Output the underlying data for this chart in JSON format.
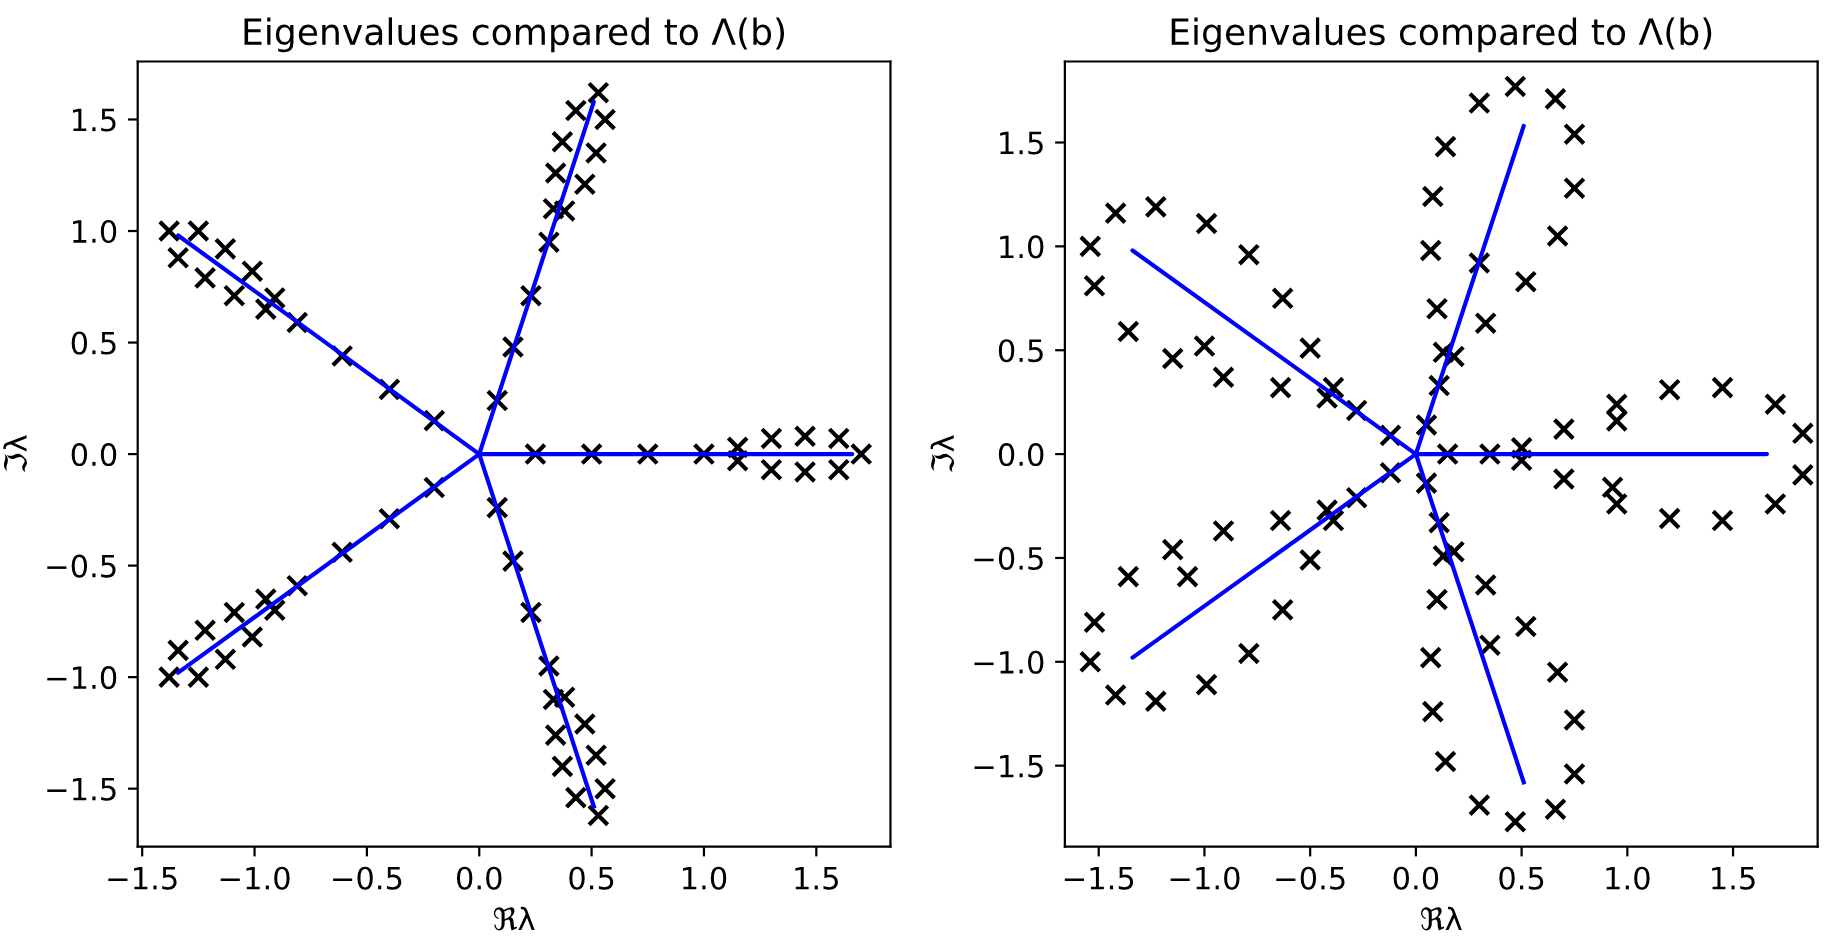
{
  "chart_data": [
    {
      "type": "scatter",
      "title": "Eigenvalues compared to Λ(b)",
      "xlabel": "ℜλ",
      "ylabel": "ℑλ",
      "grid": false,
      "xlim": [
        -1.52,
        1.83
      ],
      "ylim": [
        -1.76,
        1.76
      ],
      "xticks": [
        {
          "value": -1.5,
          "label": "−1.5"
        },
        {
          "value": -1.0,
          "label": "−1.0"
        },
        {
          "value": -0.5,
          "label": "−0.5"
        },
        {
          "value": 0.0,
          "label": "0.0"
        },
        {
          "value": 0.5,
          "label": "0.5"
        },
        {
          "value": 1.0,
          "label": "1.0"
        },
        {
          "value": 1.5,
          "label": "1.5"
        }
      ],
      "yticks": [
        {
          "value": -1.5,
          "label": "−1.5"
        },
        {
          "value": -1.0,
          "label": "−1.0"
        },
        {
          "value": -0.5,
          "label": "−0.5"
        },
        {
          "value": 0.0,
          "label": "0.0"
        },
        {
          "value": 0.5,
          "label": "0.5"
        },
        {
          "value": 1.0,
          "label": "1.0"
        },
        {
          "value": 1.5,
          "label": "1.5"
        }
      ],
      "series": [
        {
          "marker": "cross",
          "color": "#000000",
          "x": [
            0.25,
            0.5,
            0.75,
            1.0,
            1.15,
            1.15,
            1.3,
            1.3,
            1.45,
            1.45,
            1.6,
            1.6,
            1.7,
            0.08,
            0.15,
            0.23,
            0.31,
            0.33,
            0.38,
            0.34,
            0.47,
            0.37,
            0.52,
            0.43,
            0.56,
            0.53,
            -0.2,
            -0.4,
            -0.61,
            -0.81,
            -0.95,
            -0.91,
            -1.09,
            -1.01,
            -1.22,
            -1.13,
            -1.34,
            -1.25,
            -1.38,
            -0.2,
            -0.4,
            -0.61,
            -0.81,
            -0.95,
            -0.91,
            -1.09,
            -1.01,
            -1.22,
            -1.13,
            -1.34,
            -1.25,
            -1.38,
            0.08,
            0.15,
            0.23,
            0.31,
            0.33,
            0.38,
            0.34,
            0.47,
            0.37,
            0.52,
            0.43,
            0.56,
            0.53
          ],
          "values": [
            0,
            0,
            0,
            0,
            0.03,
            -0.03,
            0.07,
            -0.07,
            0.08,
            -0.08,
            0.07,
            -0.07,
            0,
            0.24,
            0.48,
            0.71,
            0.95,
            1.1,
            1.09,
            1.26,
            1.21,
            1.4,
            1.35,
            1.54,
            1.5,
            1.62,
            0.15,
            0.29,
            0.44,
            0.59,
            0.65,
            0.7,
            0.71,
            0.82,
            0.79,
            0.92,
            0.88,
            1.0,
            1.0,
            -0.15,
            -0.29,
            -0.44,
            -0.59,
            -0.65,
            -0.7,
            -0.71,
            -0.82,
            -0.79,
            -0.92,
            -0.88,
            -1.0,
            -1.0,
            -0.24,
            -0.48,
            -0.71,
            -0.95,
            -1.1,
            -1.09,
            -1.26,
            -1.21,
            -1.4,
            -1.35,
            -1.54,
            -1.5,
            -1.62
          ]
        },
        {
          "type": "line",
          "line_style": "solid",
          "color": "#0000ff",
          "x": [
            0,
            1.66,
            0,
            0.51,
            0,
            -1.34,
            0,
            -1.34,
            0,
            0.51
          ],
          "values": [
            0,
            0,
            0,
            1.58,
            0,
            0.98,
            0,
            -0.98,
            0,
            -1.58
          ]
        }
      ]
    },
    {
      "type": "scatter",
      "title": "Eigenvalues compared to Λ(b)",
      "xlabel": "ℜλ",
      "ylabel": "ℑλ",
      "grid": false,
      "xlim": [
        -1.66,
        1.9
      ],
      "ylim": [
        -1.89,
        1.89
      ],
      "xticks": [
        {
          "value": -1.5,
          "label": "−1.5"
        },
        {
          "value": -1.0,
          "label": "−1.0"
        },
        {
          "value": -0.5,
          "label": "−0.5"
        },
        {
          "value": 0.0,
          "label": "0.0"
        },
        {
          "value": 0.5,
          "label": "0.5"
        },
        {
          "value": 1.0,
          "label": "1.0"
        },
        {
          "value": 1.5,
          "label": "1.5"
        }
      ],
      "yticks": [
        {
          "value": -1.5,
          "label": "−1.5"
        },
        {
          "value": -1.0,
          "label": "−1.0"
        },
        {
          "value": -0.5,
          "label": "−0.5"
        },
        {
          "value": 0.0,
          "label": "0.0"
        },
        {
          "value": 0.5,
          "label": "0.5"
        },
        {
          "value": 1.0,
          "label": "1.0"
        },
        {
          "value": 1.5,
          "label": "1.5"
        }
      ],
      "series": [
        {
          "marker": "cross",
          "color": "#000000",
          "x": [
            0.15,
            0.35,
            0.5,
            0.5,
            0.7,
            0.7,
            0.95,
            0.95,
            1.2,
            1.2,
            1.45,
            1.45,
            1.7,
            1.7,
            1.83,
            1.83,
            0.05,
            0.11,
            0.13,
            0.18,
            0.1,
            0.33,
            0.07,
            0.52,
            0.08,
            0.67,
            0.14,
            0.75,
            0.3,
            0.75,
            0.47,
            0.66,
            -0.12,
            -0.28,
            -0.42,
            -0.39,
            -0.64,
            -0.5,
            -0.91,
            -0.63,
            -1.15,
            -0.79,
            -1.36,
            -0.99,
            -1.52,
            -1.23,
            -1.54,
            -1.42,
            -0.12,
            -0.28,
            -0.42,
            -0.39,
            -0.64,
            -0.5,
            -0.91,
            -0.63,
            -1.15,
            -0.79,
            -1.36,
            -0.99,
            -1.52,
            -1.23,
            -1.54,
            -1.42,
            0.05,
            0.11,
            0.13,
            0.18,
            0.1,
            0.33,
            0.07,
            0.52,
            0.08,
            0.67,
            0.14,
            0.75,
            0.3,
            0.75,
            0.47,
            0.66,
            0.95,
            0.93,
            0.3,
            0.35,
            -1.0,
            -1.08
          ],
          "values": [
            0,
            0,
            0.03,
            -0.03,
            0.12,
            -0.12,
            0.24,
            -0.24,
            0.31,
            -0.31,
            0.32,
            -0.32,
            0.24,
            -0.24,
            0.1,
            -0.1,
            0.14,
            0.33,
            0.49,
            0.47,
            0.7,
            0.63,
            0.98,
            0.83,
            1.24,
            1.05,
            1.48,
            1.28,
            1.69,
            1.54,
            1.77,
            1.71,
            0.09,
            0.21,
            0.27,
            0.32,
            0.32,
            0.51,
            0.37,
            0.75,
            0.46,
            0.96,
            0.59,
            1.11,
            0.81,
            1.19,
            1.0,
            1.16,
            -0.09,
            -0.21,
            -0.27,
            -0.32,
            -0.32,
            -0.51,
            -0.37,
            -0.75,
            -0.46,
            -0.96,
            -0.59,
            -1.11,
            -0.81,
            -1.19,
            -1.0,
            -1.16,
            -0.14,
            -0.33,
            -0.49,
            -0.47,
            -0.7,
            -0.63,
            -0.98,
            -0.83,
            -1.24,
            -1.05,
            -1.48,
            -1.28,
            -1.69,
            -1.54,
            -1.77,
            -1.71,
            0.16,
            -0.16,
            0.92,
            -0.92,
            0.52,
            -0.59
          ]
        },
        {
          "type": "line",
          "line_style": "solid",
          "color": "#0000ff",
          "x": [
            0,
            1.66,
            0,
            0.51,
            0,
            -1.34,
            0,
            -1.34,
            0,
            0.51
          ],
          "values": [
            0,
            0,
            0,
            1.58,
            0,
            0.98,
            0,
            -0.98,
            0,
            -1.58
          ]
        }
      ]
    }
  ]
}
